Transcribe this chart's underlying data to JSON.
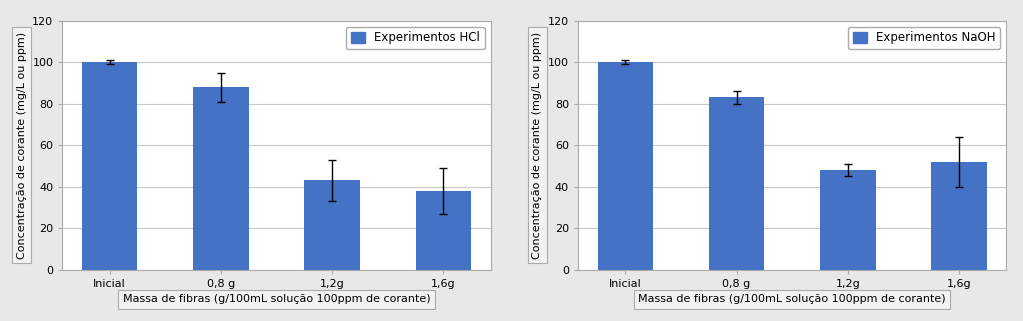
{
  "chart1": {
    "title": "Experimentos HCl",
    "categories": [
      "Inicial",
      "0,8 g",
      "1,2g",
      "1,6g"
    ],
    "values": [
      100,
      88,
      43,
      38
    ],
    "errors": [
      1,
      7,
      10,
      11
    ],
    "bar_color": "#4472C4",
    "ylabel": "Concentração de corante (mg/L ou ppm)",
    "xlabel": "Massa de fibras (g/100mL solução 100ppm de corante)",
    "ylim": [
      0,
      120
    ],
    "yticks": [
      0,
      20,
      40,
      60,
      80,
      100,
      120
    ]
  },
  "chart2": {
    "title": "Experimentos NaOH",
    "categories": [
      "Inicial",
      "0,8 g",
      "1,2g",
      "1,6g"
    ],
    "values": [
      100,
      83,
      48,
      52
    ],
    "errors": [
      1,
      3,
      3,
      12
    ],
    "bar_color": "#4472C4",
    "ylabel": "Concentração de corante (mg/L ou ppm)",
    "xlabel": "Massa de fibras (g/100mL solução 100ppm de corante)",
    "ylim": [
      0,
      120
    ],
    "yticks": [
      0,
      20,
      40,
      60,
      80,
      100,
      120
    ]
  },
  "fig_bg": "#e8e8e8",
  "axes_bg": "#ffffff",
  "grid_color": "#c8c8c8",
  "tick_font_size": 8,
  "label_font_size": 8,
  "legend_font_size": 8.5,
  "label_box_color": "#f2f2f2",
  "label_box_edge": "#aaaaaa"
}
